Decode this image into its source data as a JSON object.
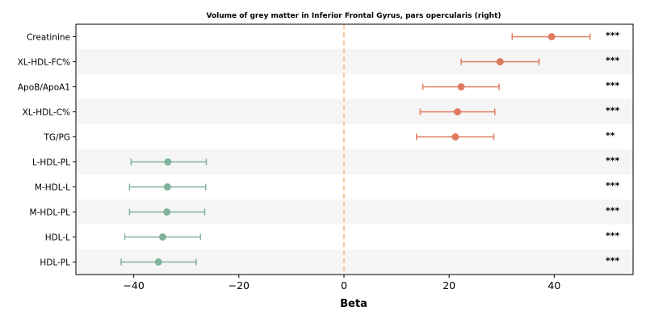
{
  "chart_data": {
    "type": "forest",
    "title": "Volume of grey matter in Inferior Frontal Gyrus, pars opercularis (right)",
    "xlabel": "Beta",
    "ylabel": "",
    "xlim": [
      -51,
      55
    ],
    "xticks": [
      -40,
      -20,
      0,
      20,
      40
    ],
    "xtick_labels": [
      "−40",
      "−20",
      "0",
      "20",
      "40"
    ],
    "reference_line": 0,
    "grid": false,
    "colors": {
      "positive": "#e07a5f",
      "negative": "#81b29a",
      "reference": "#f4a259",
      "band": "#f5f5f5"
    },
    "rows": [
      {
        "label": "Creatinine",
        "beta": 39.5,
        "ci_low": 32.0,
        "ci_high": 46.8,
        "sig": "***"
      },
      {
        "label": "XL-HDL-FC%",
        "beta": 29.7,
        "ci_low": 22.3,
        "ci_high": 37.1,
        "sig": "***"
      },
      {
        "label": "ApoB/ApoA1",
        "beta": 22.3,
        "ci_low": 15.0,
        "ci_high": 29.5,
        "sig": "***"
      },
      {
        "label": "XL-HDL-C%",
        "beta": 21.6,
        "ci_low": 14.5,
        "ci_high": 28.7,
        "sig": "***"
      },
      {
        "label": "TG/PG",
        "beta": 21.2,
        "ci_low": 13.8,
        "ci_high": 28.5,
        "sig": "**"
      },
      {
        "label": "L-HDL-PL",
        "beta": -33.5,
        "ci_low": -40.5,
        "ci_high": -26.2,
        "sig": "***"
      },
      {
        "label": "M-HDL-L",
        "beta": -33.6,
        "ci_low": -40.8,
        "ci_high": -26.3,
        "sig": "***"
      },
      {
        "label": "M-HDL-PL",
        "beta": -33.7,
        "ci_low": -40.8,
        "ci_high": -26.5,
        "sig": "***"
      },
      {
        "label": "HDL-L",
        "beta": -34.5,
        "ci_low": -41.7,
        "ci_high": -27.3,
        "sig": "***"
      },
      {
        "label": "HDL-PL",
        "beta": -35.3,
        "ci_low": -42.4,
        "ci_high": -28.1,
        "sig": "***"
      }
    ]
  }
}
